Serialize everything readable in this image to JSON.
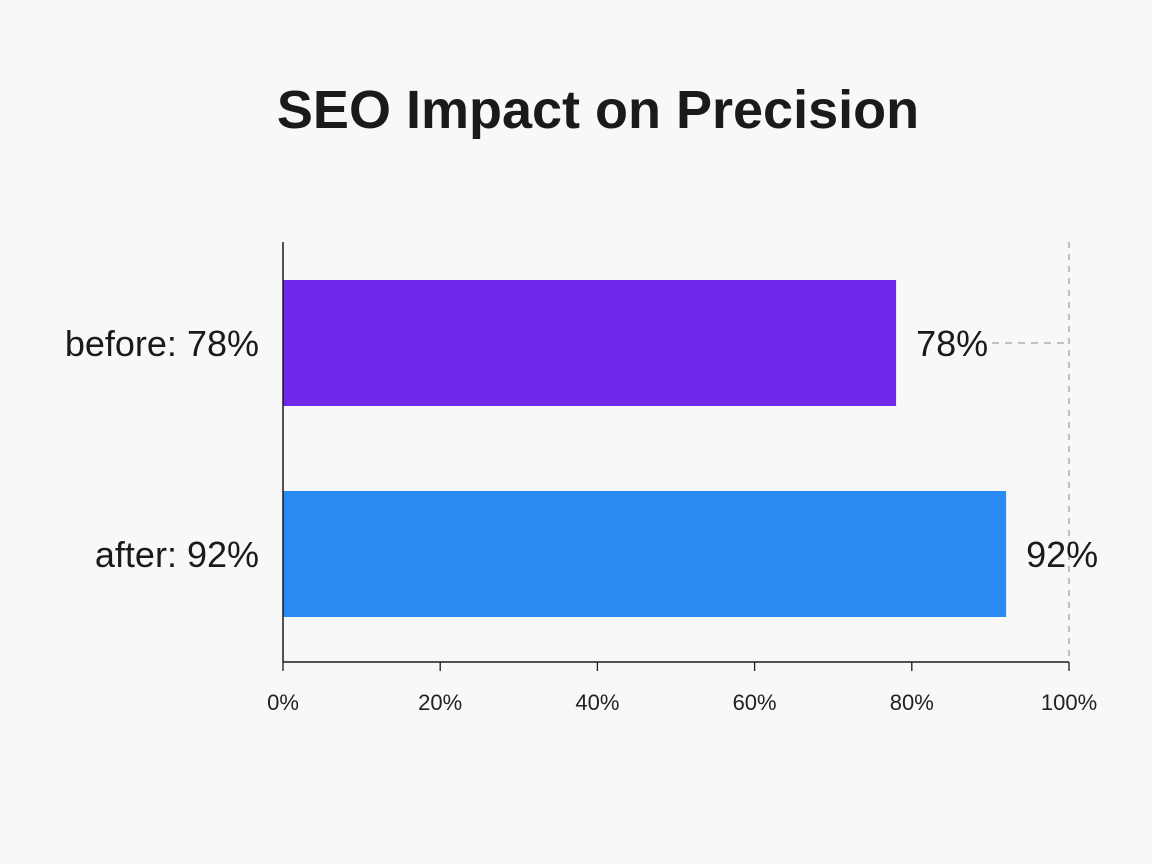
{
  "chart_data": {
    "type": "bar",
    "orientation": "horizontal",
    "title": "SEO Impact on Precision",
    "categories": [
      "before: 78%",
      "after: 92%"
    ],
    "values": [
      78,
      92
    ],
    "data_labels": [
      "78%",
      "92%"
    ],
    "xlim": [
      0,
      100
    ],
    "x_ticks": [
      0,
      20,
      40,
      60,
      80,
      100
    ],
    "x_tick_labels": [
      "0%",
      "20%",
      "40%",
      "60%",
      "80%",
      "100%"
    ],
    "xlabel": "",
    "ylabel": "",
    "grid": false,
    "reference_line": 100,
    "colors": [
      "#7029ea",
      "#2a8bf2"
    ]
  }
}
